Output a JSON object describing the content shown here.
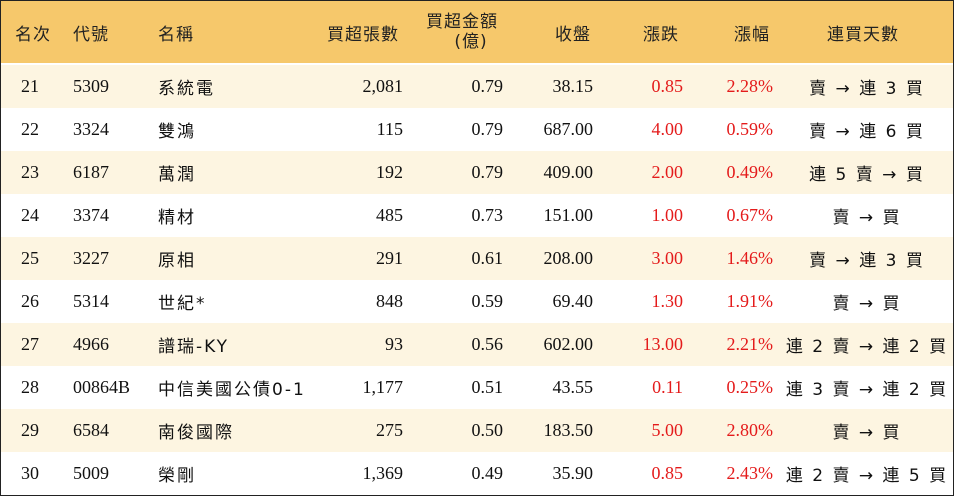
{
  "headers": {
    "rank": "名次",
    "code": "代號",
    "name": "名稱",
    "net_lots": "買超張數",
    "amount_line1": "買超金額",
    "amount_line2": "(億)",
    "close": "收盤",
    "change": "漲跌",
    "pct": "漲幅",
    "streak": "連買天數"
  },
  "rows": [
    {
      "rank": "21",
      "code": "5309",
      "name": "系統電",
      "net_lots": "2,081",
      "amount": "0.79",
      "close": "38.15",
      "change": "0.85",
      "pct": "2.28%",
      "streak": "賣 → 連 3 買"
    },
    {
      "rank": "22",
      "code": "3324",
      "name": "雙鴻",
      "net_lots": "115",
      "amount": "0.79",
      "close": "687.00",
      "change": "4.00",
      "pct": "0.59%",
      "streak": "賣 → 連 6 買"
    },
    {
      "rank": "23",
      "code": "6187",
      "name": "萬潤",
      "net_lots": "192",
      "amount": "0.79",
      "close": "409.00",
      "change": "2.00",
      "pct": "0.49%",
      "streak": "連 5 賣 → 買"
    },
    {
      "rank": "24",
      "code": "3374",
      "name": "精材",
      "net_lots": "485",
      "amount": "0.73",
      "close": "151.00",
      "change": "1.00",
      "pct": "0.67%",
      "streak": "賣 → 買"
    },
    {
      "rank": "25",
      "code": "3227",
      "name": "原相",
      "net_lots": "291",
      "amount": "0.61",
      "close": "208.00",
      "change": "3.00",
      "pct": "1.46%",
      "streak": "賣 → 連 3 買"
    },
    {
      "rank": "26",
      "code": "5314",
      "name": "世紀*",
      "net_lots": "848",
      "amount": "0.59",
      "close": "69.40",
      "change": "1.30",
      "pct": "1.91%",
      "streak": "賣 → 買"
    },
    {
      "rank": "27",
      "code": "4966",
      "name": "譜瑞-KY",
      "net_lots": "93",
      "amount": "0.56",
      "close": "602.00",
      "change": "13.00",
      "pct": "2.21%",
      "streak": "連 2 賣 → 連 2 買"
    },
    {
      "rank": "28",
      "code": "00864B",
      "name": "中信美國公債0-1",
      "net_lots": "1,177",
      "amount": "0.51",
      "close": "43.55",
      "change": "0.11",
      "pct": "0.25%",
      "streak": "連 3 賣 → 連 2 買"
    },
    {
      "rank": "29",
      "code": "6584",
      "name": "南俊國際",
      "net_lots": "275",
      "amount": "0.50",
      "close": "183.50",
      "change": "5.00",
      "pct": "2.80%",
      "streak": "賣 → 買"
    },
    {
      "rank": "30",
      "code": "5009",
      "name": "榮剛",
      "net_lots": "1,369",
      "amount": "0.49",
      "close": "35.90",
      "change": "0.85",
      "pct": "2.43%",
      "streak": "連 2 賣 → 連 5 買"
    }
  ],
  "colors": {
    "header_bg": "#f6c86b",
    "stripe_bg": "#fdf5e1",
    "up_color": "#e41b1b"
  }
}
